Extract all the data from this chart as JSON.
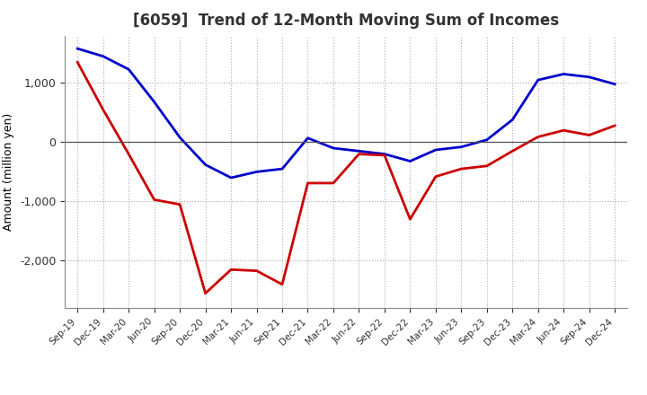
{
  "title": "[6059]  Trend of 12-Month Moving Sum of Incomes",
  "ylabel": "Amount (million yen)",
  "x_labels": [
    "Sep-19",
    "Dec-19",
    "Mar-20",
    "Jun-20",
    "Sep-20",
    "Dec-20",
    "Mar-21",
    "Jun-21",
    "Sep-21",
    "Dec-21",
    "Mar-22",
    "Jun-22",
    "Sep-22",
    "Dec-22",
    "Mar-23",
    "Jun-23",
    "Sep-23",
    "Dec-23",
    "Mar-24",
    "Jun-24",
    "Sep-24",
    "Dec-24"
  ],
  "ordinary_income": [
    1580,
    1450,
    1230,
    680,
    80,
    -380,
    -600,
    -500,
    -450,
    70,
    -100,
    -150,
    -200,
    -320,
    -130,
    -80,
    40,
    380,
    1050,
    1150,
    1100,
    980
  ],
  "net_income": [
    1350,
    550,
    -200,
    -970,
    -1050,
    -2550,
    -2150,
    -2170,
    -2400,
    -690,
    -690,
    -200,
    -220,
    -1300,
    -580,
    -450,
    -400,
    -150,
    90,
    200,
    120,
    280
  ],
  "ordinary_color": "#0000cc",
  "net_color": "#cc0000",
  "ylim": [
    -2800,
    1800
  ],
  "yticks": [
    -2000,
    -1000,
    0,
    1000
  ],
  "background_color": "#ffffff",
  "grid_color": "#aaaaaa",
  "title_fontsize": 12,
  "title_color": "#333333"
}
